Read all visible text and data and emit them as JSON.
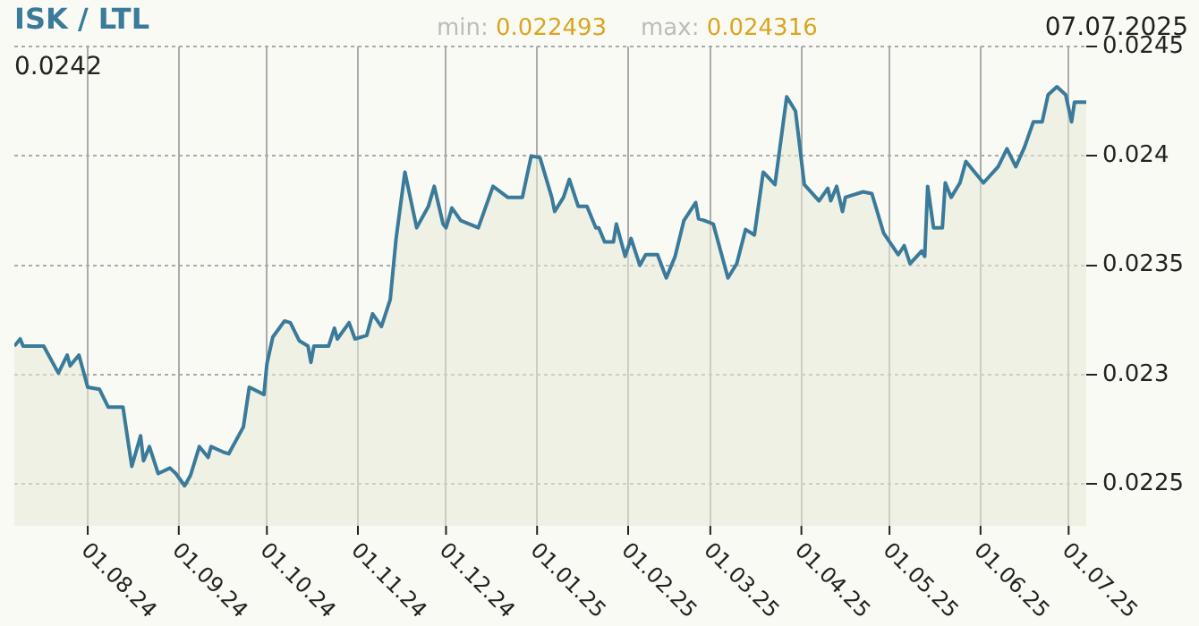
{
  "chart_data": {
    "type": "area",
    "title": "ISK / LTL",
    "annotations": [
      "0.0242",
      "min: 0.022493",
      "max: 0.024316",
      "07.07.2025"
    ],
    "x": [
      "2024-07-07",
      "2024-07-09",
      "2024-07-10",
      "2024-07-17",
      "2024-07-22",
      "2024-07-25",
      "2024-07-26",
      "2024-07-29",
      "2024-08-01",
      "2024-08-05",
      "2024-08-08",
      "2024-08-13",
      "2024-08-16",
      "2024-08-19",
      "2024-08-20",
      "2024-08-22",
      "2024-08-25",
      "2024-08-29",
      "2024-08-31",
      "2024-09-03",
      "2024-09-05",
      "2024-09-08",
      "2024-09-11",
      "2024-09-12",
      "2024-09-16",
      "2024-09-18",
      "2024-09-23",
      "2024-09-25",
      "2024-09-30",
      "2024-10-01",
      "2024-10-03",
      "2024-10-07",
      "2024-10-09",
      "2024-10-12",
      "2024-10-15",
      "2024-10-16",
      "2024-10-17",
      "2024-10-22",
      "2024-10-24",
      "2024-10-25",
      "2024-10-29",
      "2024-10-31",
      "2024-11-04",
      "2024-11-06",
      "2024-11-09",
      "2024-11-12",
      "2024-11-13",
      "2024-11-14",
      "2024-11-17",
      "2024-11-21",
      "2024-11-25",
      "2024-11-27",
      "2024-11-30",
      "2024-12-01",
      "2024-12-03",
      "2024-12-06",
      "2024-12-12",
      "2024-12-17",
      "2024-12-22",
      "2024-12-27",
      "2024-12-30",
      "2025-01-02",
      "2025-01-06",
      "2025-01-07",
      "2025-01-10",
      "2025-01-12",
      "2025-01-15",
      "2025-01-18",
      "2025-01-21",
      "2025-01-22",
      "2025-01-24",
      "2025-01-27",
      "2025-01-28",
      "2025-01-31",
      "2025-02-02",
      "2025-02-05",
      "2025-02-07",
      "2025-02-11",
      "2025-02-14",
      "2025-02-17",
      "2025-02-20",
      "2025-02-24",
      "2025-02-25",
      "2025-02-27",
      "2025-03-02",
      "2025-03-07",
      "2025-03-10",
      "2025-03-13",
      "2025-03-16",
      "2025-03-19",
      "2025-03-23",
      "2025-03-27",
      "2025-03-30",
      "2025-04-02",
      "2025-04-07",
      "2025-04-10",
      "2025-04-11",
      "2025-04-13",
      "2025-04-15",
      "2025-04-16",
      "2025-04-22",
      "2025-04-25",
      "2025-04-29",
      "2025-05-04",
      "2025-05-06",
      "2025-05-08",
      "2025-05-12",
      "2025-05-13",
      "2025-05-14",
      "2025-05-16",
      "2025-05-19",
      "2025-05-20",
      "2025-05-22",
      "2025-05-25",
      "2025-05-27",
      "2025-06-02",
      "2025-06-07",
      "2025-06-10",
      "2025-06-13",
      "2025-06-16",
      "2025-06-19",
      "2025-06-22",
      "2025-06-24",
      "2025-06-27",
      "2025-06-30",
      "2025-07-02",
      "2025-07-03",
      "2025-07-07"
    ],
    "series": [
      {
        "color": "#3a7a9a",
        "values": [
          0.023131,
          0.023164,
          0.023131,
          0.023131,
          0.023008,
          0.02309,
          0.023041,
          0.02309,
          0.022943,
          0.022934,
          0.022852,
          0.022852,
          0.022582,
          0.022721,
          0.022607,
          0.022672,
          0.022549,
          0.022574,
          0.022549,
          0.022493,
          0.022541,
          0.022672,
          0.022623,
          0.022672,
          0.022648,
          0.022639,
          0.022762,
          0.022943,
          0.02291,
          0.023049,
          0.023172,
          0.023246,
          0.023238,
          0.023156,
          0.023131,
          0.023057,
          0.023131,
          0.023131,
          0.023213,
          0.023164,
          0.023238,
          0.023164,
          0.02318,
          0.023279,
          0.023221,
          0.023344,
          0.023484,
          0.023623,
          0.023926,
          0.023672,
          0.02377,
          0.023861,
          0.023689,
          0.023672,
          0.023762,
          0.023705,
          0.023672,
          0.023861,
          0.023811,
          0.023811,
          0.024,
          0.023992,
          0.023811,
          0.023746,
          0.023811,
          0.023893,
          0.02377,
          0.02377,
          0.023672,
          0.023672,
          0.023607,
          0.023607,
          0.023689,
          0.023541,
          0.023623,
          0.0235,
          0.023549,
          0.023549,
          0.023443,
          0.023541,
          0.023705,
          0.023787,
          0.023713,
          0.023705,
          0.023689,
          0.023443,
          0.023508,
          0.023664,
          0.023639,
          0.023926,
          0.023869,
          0.02427,
          0.024205,
          0.023869,
          0.023795,
          0.023852,
          0.023795,
          0.023861,
          0.023746,
          0.023811,
          0.023836,
          0.023828,
          0.023648,
          0.023549,
          0.02359,
          0.023508,
          0.023566,
          0.023541,
          0.023861,
          0.023672,
          0.023672,
          0.023877,
          0.023811,
          0.023877,
          0.023975,
          0.023877,
          0.023951,
          0.024033,
          0.023951,
          0.024041,
          0.024156,
          0.024156,
          0.024279,
          0.024316,
          0.024279,
          0.024156,
          0.024246,
          0.024246
        ]
      }
    ],
    "xlim": [
      "2024-07-07",
      "2025-07-07"
    ],
    "xticks": [
      {
        "value": "2024-08-01",
        "label": "01.08.24"
      },
      {
        "value": "2024-09-01",
        "label": "01.09.24"
      },
      {
        "value": "2024-10-01",
        "label": "01.10.24"
      },
      {
        "value": "2024-11-01",
        "label": "01.11.24"
      },
      {
        "value": "2024-12-01",
        "label": "01.12.24"
      },
      {
        "value": "2025-01-01",
        "label": "01.01.25"
      },
      {
        "value": "2025-02-01",
        "label": "01.02.25"
      },
      {
        "value": "2025-03-01",
        "label": "01.03.25"
      },
      {
        "value": "2025-04-01",
        "label": "01.04.25"
      },
      {
        "value": "2025-05-01",
        "label": "01.05.25"
      },
      {
        "value": "2025-06-01",
        "label": "01.06.25"
      },
      {
        "value": "2025-07-01",
        "label": "01.07.25"
      }
    ],
    "ylim": [
      0.02231,
      0.0245
    ],
    "yticks": [
      0.0225,
      0.023,
      0.0235,
      0.024,
      0.0245
    ],
    "grid": true,
    "legend": false,
    "marker": "none",
    "line_style": "solid"
  }
}
